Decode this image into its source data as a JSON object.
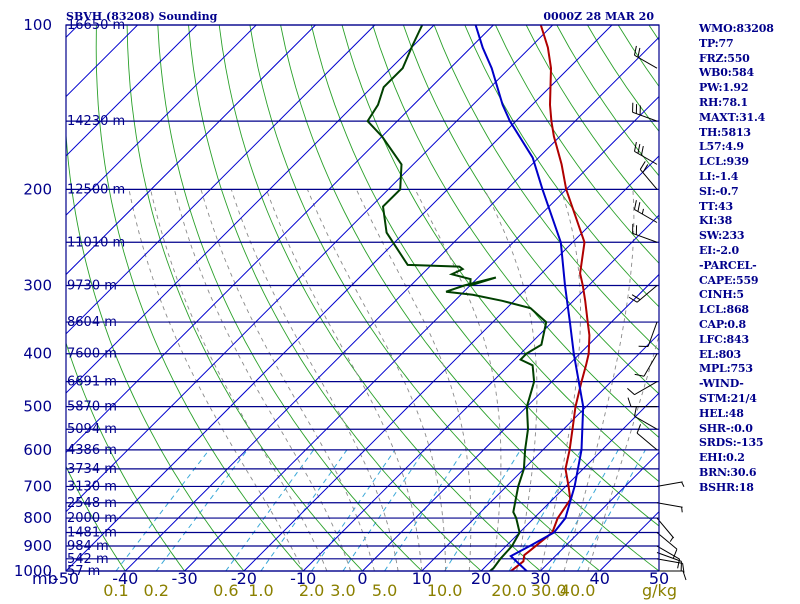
{
  "header": {
    "station_title": "SBVH (83208) Sounding",
    "valid_time": "0000Z 28 MAR 20"
  },
  "chart_data": {
    "type": "line",
    "diagram": "skew-T log-P",
    "pressure_range_mb": [
      100,
      1000
    ],
    "temperature_range_c": [
      -50,
      50
    ],
    "pressure_axis_unit": "mb",
    "mixing_ratio_unit": "g/kg",
    "pressure_labels": [
      "100",
      "200",
      "300",
      "400",
      "500",
      "600",
      "700",
      "800",
      "900",
      "1000"
    ],
    "temperature_labels": [
      "-50",
      "-40",
      "-30",
      "-20",
      "-10",
      "0",
      "10",
      "20",
      "30",
      "40",
      "50"
    ],
    "mixing_ratio_labels": [
      "0.1",
      "0.2",
      "0.6",
      "1.0",
      "2.0",
      "3.0",
      "5.0",
      "10.0",
      "20.0",
      "30.0",
      "40.0"
    ],
    "mixing_ratio_values": [
      0.1,
      0.2,
      0.6,
      1.0,
      2.0,
      3.0,
      5.0,
      10.0,
      20.0,
      30.0,
      40.0
    ],
    "height_levels": [
      {
        "p": 100,
        "label": "16650 m"
      },
      {
        "p": 150,
        "label": "14230 m"
      },
      {
        "p": 200,
        "label": "12500 m"
      },
      {
        "p": 250,
        "label": "11010 m"
      },
      {
        "p": 300,
        "label": "9730 m"
      },
      {
        "p": 350,
        "label": "8604 m"
      },
      {
        "p": 400,
        "label": "7600 m"
      },
      {
        "p": 450,
        "label": "6691 m"
      },
      {
        "p": 500,
        "label": "5870 m"
      },
      {
        "p": 550,
        "label": "5094 m"
      },
      {
        "p": 600,
        "label": "4386 m"
      },
      {
        "p": 650,
        "label": "3734 m"
      },
      {
        "p": 700,
        "label": "3130 m"
      },
      {
        "p": 750,
        "label": "2548 m"
      },
      {
        "p": 800,
        "label": "2000 m"
      },
      {
        "p": 850,
        "label": "1481 m"
      },
      {
        "p": 900,
        "label": "984 m"
      },
      {
        "p": 950,
        "label": "542 m"
      },
      {
        "p": 1000,
        "label": "57 m"
      }
    ],
    "series": [
      {
        "name": "Temperature",
        "color": "#b00000",
        "points": [
          [
            1004,
            25
          ],
          [
            987,
            25.2
          ],
          [
            960,
            25.5
          ],
          [
            935,
            24.6
          ],
          [
            920,
            24.8
          ],
          [
            880,
            25.2
          ],
          [
            850,
            25.5
          ],
          [
            800,
            24
          ],
          [
            740,
            23
          ],
          [
            700,
            20.5
          ],
          [
            650,
            17
          ],
          [
            600,
            14.5
          ],
          [
            550,
            11.5
          ],
          [
            500,
            8.2
          ],
          [
            450,
            5
          ],
          [
            420,
            3
          ],
          [
            400,
            1.5
          ],
          [
            370,
            -1.5
          ],
          [
            350,
            -4
          ],
          [
            320,
            -8
          ],
          [
            300,
            -11
          ],
          [
            285,
            -13.5
          ],
          [
            250,
            -18
          ],
          [
            200,
            -30
          ],
          [
            180,
            -35
          ],
          [
            160,
            -41
          ],
          [
            150,
            -44
          ],
          [
            140,
            -47
          ],
          [
            120,
            -53
          ],
          [
            110,
            -57
          ],
          [
            100,
            -62
          ]
        ]
      },
      {
        "name": "Dewpoint",
        "color": "#004000",
        "points": [
          [
            1004,
            21.5
          ],
          [
            987,
            21.6
          ],
          [
            950,
            21.2
          ],
          [
            900,
            21
          ],
          [
            850,
            20
          ],
          [
            800,
            17
          ],
          [
            780,
            15.5
          ],
          [
            700,
            12
          ],
          [
            650,
            10
          ],
          [
            600,
            7
          ],
          [
            550,
            4
          ],
          [
            500,
            0
          ],
          [
            450,
            -3
          ],
          [
            420,
            -6
          ],
          [
            410,
            -9
          ],
          [
            400,
            -9
          ],
          [
            385,
            -8
          ],
          [
            350,
            -11
          ],
          [
            330,
            -16
          ],
          [
            320,
            -22
          ],
          [
            312,
            -28
          ],
          [
            308,
            -33
          ],
          [
            300,
            -31
          ],
          [
            295,
            -29
          ],
          [
            290,
            -27
          ],
          [
            300,
            -30
          ],
          [
            292,
            -31
          ],
          [
            286,
            -35
          ],
          [
            280,
            -34
          ],
          [
            277,
            -35
          ],
          [
            275,
            -44
          ],
          [
            240,
            -53
          ],
          [
            215,
            -58
          ],
          [
            200,
            -58
          ],
          [
            180,
            -62
          ],
          [
            160,
            -70
          ],
          [
            150,
            -75
          ],
          [
            140,
            -76
          ],
          [
            130,
            -78
          ],
          [
            120,
            -78
          ],
          [
            110,
            -80
          ],
          [
            100,
            -82
          ]
        ]
      },
      {
        "name": "Parcel",
        "color": "#0000c8",
        "points": [
          [
            1004,
            28
          ],
          [
            939,
            22.5
          ],
          [
            900,
            24
          ],
          [
            850,
            25.8
          ],
          [
            800,
            25.3
          ],
          [
            700,
            21.5
          ],
          [
            600,
            16.5
          ],
          [
            500,
            9.5
          ],
          [
            400,
            -1
          ],
          [
            350,
            -7
          ],
          [
            300,
            -14
          ],
          [
            250,
            -22
          ],
          [
            200,
            -34
          ],
          [
            175,
            -41
          ],
          [
            150,
            -51
          ],
          [
            140,
            -55
          ],
          [
            120,
            -63
          ],
          [
            110,
            -68
          ],
          [
            100,
            -73
          ]
        ]
      }
    ],
    "wind_barbs": [
      {
        "p": 1000,
        "dir": 90,
        "spd": 10
      },
      {
        "p": 950,
        "dir": 100,
        "spd": 10
      },
      {
        "p": 925,
        "dir": 110,
        "spd": 10
      },
      {
        "p": 900,
        "dir": 120,
        "spd": 10
      },
      {
        "p": 850,
        "dir": 130,
        "spd": 10
      },
      {
        "p": 800,
        "dir": 140,
        "spd": 5
      },
      {
        "p": 750,
        "dir": 100,
        "spd": 5
      },
      {
        "p": 700,
        "dir": 80,
        "spd": 5
      },
      {
        "p": 600,
        "dir": 310,
        "spd": 10
      },
      {
        "p": 550,
        "dir": 300,
        "spd": 10
      },
      {
        "p": 500,
        "dir": 270,
        "spd": 10
      },
      {
        "p": 450,
        "dir": 240,
        "spd": 10
      },
      {
        "p": 400,
        "dir": 210,
        "spd": 10
      },
      {
        "p": 350,
        "dir": 200,
        "spd": 10
      },
      {
        "p": 300,
        "dir": 230,
        "spd": 20
      },
      {
        "p": 250,
        "dir": 290,
        "spd": 20
      },
      {
        "p": 230,
        "dir": 300,
        "spd": 25
      },
      {
        "p": 200,
        "dir": 320,
        "spd": 20
      },
      {
        "p": 180,
        "dir": 300,
        "spd": 30
      },
      {
        "p": 150,
        "dir": 290,
        "spd": 30
      },
      {
        "p": 120,
        "dir": 300,
        "spd": 20
      }
    ]
  },
  "indices": [
    "WMO:83208",
    "TP:77",
    "FRZ:550",
    "WB0:584",
    "PW:1.92",
    "RH:78.1",
    "MAXT:31.4",
    "TH:5813",
    "L57:4.9",
    "LCL:939",
    "LI:-1.4",
    "SI:-0.7",
    "TT:43",
    "KI:38",
    "SW:233",
    "EI:-2.0",
    "-PARCEL-",
    "CAPE:559",
    "CINH:5",
    "LCL:868",
    "CAP:0.8",
    "LFC:843",
    "EL:803",
    "MPL:753",
    "-WIND-",
    "STM:21/4",
    "HEL:48",
    "SHR-:0.0",
    "SRDS:-135",
    "EHI:0.2",
    "BRN:30.6",
    "BSHR:18"
  ],
  "colors": {
    "isobar": "#00008b",
    "isotherm": "#0000cd",
    "dry_adiabat": "#2aa02a",
    "moist_adiabat": "#8a8a8a",
    "mixing_ratio": "#3aa8d8",
    "temperature": "#b00000",
    "dewpoint": "#004000",
    "parcel": "#0000c8",
    "label_blue": "#00008b",
    "label_olive": "#8b8000"
  }
}
